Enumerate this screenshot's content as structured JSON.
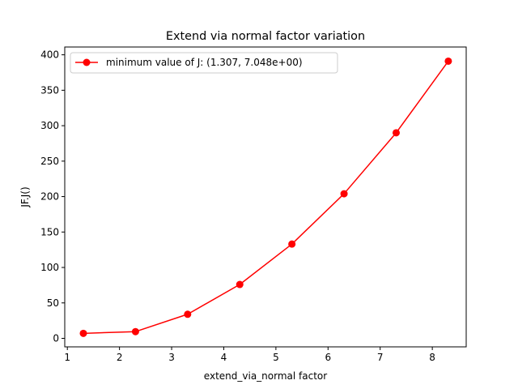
{
  "chart_data": {
    "type": "line",
    "title": "Extend via normal factor variation",
    "xlabel": "extend_via_normal factor",
    "ylabel": "JF.J()",
    "xlim": [
      0.95,
      8.65
    ],
    "ylim": [
      -12,
      411
    ],
    "x_ticks": [
      1,
      2,
      3,
      4,
      5,
      6,
      7,
      8
    ],
    "y_ticks": [
      0,
      50,
      100,
      150,
      200,
      250,
      300,
      350,
      400
    ],
    "grid": false,
    "legend_position": "top-left",
    "series": [
      {
        "name": "minimum value of J: (1.307, 7.048e+00)",
        "color": "#ff0000",
        "marker": "circle",
        "x": [
          1.307,
          2.307,
          3.307,
          4.307,
          5.307,
          6.307,
          7.307,
          8.307
        ],
        "y": [
          7.048,
          9.5,
          34,
          76,
          133,
          204,
          290,
          391
        ]
      }
    ]
  }
}
